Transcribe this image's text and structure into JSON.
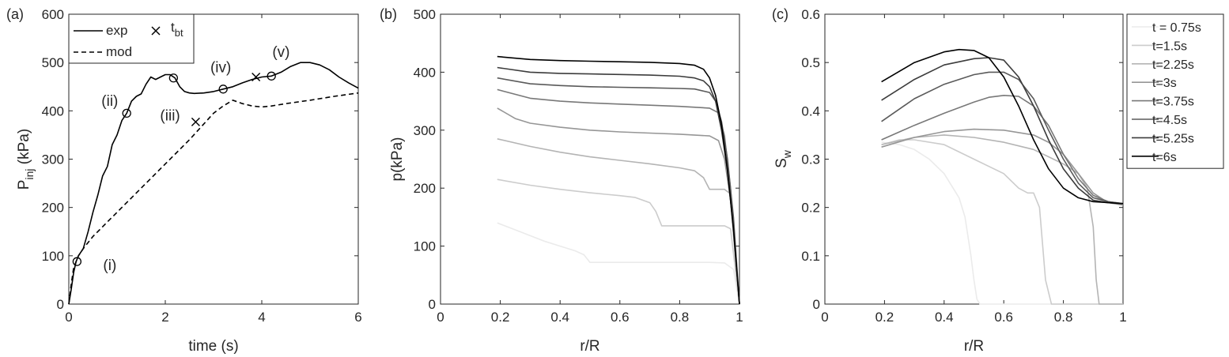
{
  "chart_data": [
    {
      "panel_label": "(a)",
      "type": "line",
      "xlabel": "time (s)",
      "ylabel_main": "P",
      "ylabel_sub": "inj",
      "ylabel_rest": "(kPa)",
      "xlim": [
        0,
        6
      ],
      "ylim": [
        0,
        600
      ],
      "xticks": [
        0,
        2,
        4,
        6
      ],
      "yticks": [
        0,
        100,
        200,
        300,
        400,
        500,
        600
      ],
      "grid": false,
      "legend_placement": "top-left",
      "legend": {
        "exp": "exp",
        "mod": "mod",
        "tbt_main": "t",
        "tbt_sub": "bt"
      },
      "series": [
        {
          "name": "exp",
          "style": "solid",
          "x": [
            0,
            0.05,
            0.1,
            0.15,
            0.2,
            0.3,
            0.4,
            0.5,
            0.6,
            0.7,
            0.8,
            0.9,
            1.0,
            1.1,
            1.2,
            1.3,
            1.4,
            1.5,
            1.6,
            1.7,
            1.8,
            1.9,
            2.0,
            2.1,
            2.2,
            2.3,
            2.4,
            2.5,
            2.6,
            2.8,
            3.0,
            3.2,
            3.4,
            3.6,
            3.8,
            4.0,
            4.2,
            4.4,
            4.6,
            4.8,
            5.0,
            5.2,
            5.4,
            5.6,
            5.8,
            6.0
          ],
          "y": [
            0,
            30,
            65,
            88,
            100,
            115,
            150,
            190,
            225,
            265,
            285,
            330,
            350,
            380,
            395,
            420,
            430,
            435,
            455,
            470,
            465,
            470,
            475,
            475,
            468,
            450,
            440,
            437,
            436,
            437,
            440,
            445,
            450,
            458,
            465,
            470,
            472,
            480,
            492,
            500,
            500,
            495,
            485,
            470,
            458,
            447
          ]
        },
        {
          "name": "mod",
          "style": "dashed",
          "x": [
            0,
            0.05,
            0.1,
            0.2,
            0.3,
            0.5,
            0.8,
            1.0,
            1.5,
            2.0,
            2.5,
            3.0,
            3.2,
            3.4,
            3.6,
            3.8,
            4.0,
            4.2,
            4.5,
            5.0,
            5.5,
            6.0
          ],
          "y": [
            0,
            40,
            75,
            100,
            115,
            140,
            170,
            190,
            240,
            290,
            340,
            395,
            410,
            422,
            415,
            410,
            408,
            410,
            415,
            422,
            430,
            437
          ]
        }
      ],
      "circle_markers": [
        {
          "x": 0.17,
          "y": 88
        },
        {
          "x": 1.2,
          "y": 395
        },
        {
          "x": 2.17,
          "y": 468
        },
        {
          "x": 3.2,
          "y": 445
        },
        {
          "x": 4.2,
          "y": 472
        }
      ],
      "tbt_markers": [
        {
          "x": 2.63,
          "y": 377
        },
        {
          "x": 3.88,
          "y": 470
        }
      ],
      "annotations": [
        {
          "text": "(i)",
          "x": 0.85,
          "y": 70
        },
        {
          "text": "(ii)",
          "x": 0.85,
          "y": 410
        },
        {
          "text": "(iii)",
          "x": 2.1,
          "y": 380
        },
        {
          "text": "(iv)",
          "x": 3.15,
          "y": 480
        },
        {
          "text": "(v)",
          "x": 4.4,
          "y": 512
        }
      ]
    },
    {
      "panel_label": "(b)",
      "type": "line",
      "xlabel": "r/R",
      "ylabel": "p(kPa)",
      "xlim": [
        0,
        1
      ],
      "ylim": [
        0,
        500
      ],
      "xticks": [
        0,
        0.2,
        0.4,
        0.6,
        0.8,
        1
      ],
      "yticks": [
        0,
        100,
        200,
        300,
        400,
        500
      ],
      "grid": false,
      "series": [
        {
          "name": "t = 0.75s",
          "color": "#ebebeb",
          "x": [
            0.19,
            0.25,
            0.3,
            0.35,
            0.4,
            0.45,
            0.48,
            0.5,
            0.6,
            0.7,
            0.8,
            0.9,
            0.95,
            0.98,
            1.0
          ],
          "y": [
            140,
            128,
            118,
            108,
            100,
            92,
            85,
            72,
            72,
            72,
            72,
            72,
            71,
            60,
            0
          ]
        },
        {
          "name": "t=1.5s",
          "color": "#cccccc",
          "x": [
            0.19,
            0.3,
            0.4,
            0.5,
            0.6,
            0.65,
            0.7,
            0.72,
            0.74,
            0.8,
            0.9,
            0.95,
            0.97,
            1.0
          ],
          "y": [
            215,
            205,
            198,
            192,
            187,
            184,
            175,
            160,
            135,
            135,
            135,
            135,
            130,
            0
          ]
        },
        {
          "name": "t=2.25s",
          "color": "#b4b4b4",
          "x": [
            0.19,
            0.3,
            0.4,
            0.5,
            0.6,
            0.7,
            0.8,
            0.85,
            0.88,
            0.9,
            0.95,
            0.97,
            1.0
          ],
          "y": [
            285,
            272,
            262,
            254,
            248,
            242,
            235,
            230,
            218,
            198,
            198,
            190,
            0
          ]
        },
        {
          "name": "t=3s",
          "color": "#969696",
          "x": [
            0.19,
            0.25,
            0.3,
            0.4,
            0.5,
            0.6,
            0.7,
            0.8,
            0.9,
            0.93,
            0.95,
            0.97,
            1.0
          ],
          "y": [
            338,
            320,
            312,
            305,
            300,
            297,
            295,
            293,
            290,
            282,
            250,
            180,
            0
          ]
        },
        {
          "name": "t=3.75s",
          "color": "#787878",
          "x": [
            0.19,
            0.3,
            0.4,
            0.5,
            0.6,
            0.7,
            0.8,
            0.9,
            0.93,
            0.95,
            0.97,
            1.0
          ],
          "y": [
            370,
            355,
            350,
            347,
            345,
            343,
            341,
            338,
            330,
            290,
            200,
            0
          ]
        },
        {
          "name": "t=4.5s",
          "color": "#5a5a5a",
          "x": [
            0.19,
            0.3,
            0.4,
            0.5,
            0.6,
            0.7,
            0.8,
            0.85,
            0.9,
            0.92,
            0.94,
            0.96,
            0.98,
            1.0
          ],
          "y": [
            390,
            380,
            377,
            375,
            374,
            373,
            372,
            371,
            365,
            350,
            315,
            250,
            150,
            0
          ]
        },
        {
          "name": "t=5.25s",
          "color": "#3c3c3c",
          "x": [
            0.19,
            0.3,
            0.4,
            0.5,
            0.6,
            0.7,
            0.8,
            0.85,
            0.88,
            0.9,
            0.92,
            0.94,
            0.96,
            0.98,
            1.0
          ],
          "y": [
            408,
            400,
            398,
            397,
            396,
            395,
            393,
            390,
            385,
            375,
            350,
            300,
            230,
            130,
            0
          ]
        },
        {
          "name": "t=6s",
          "color": "#000000",
          "x": [
            0.19,
            0.3,
            0.4,
            0.5,
            0.6,
            0.7,
            0.8,
            0.85,
            0.88,
            0.9,
            0.92,
            0.94,
            0.96,
            0.98,
            1.0
          ],
          "y": [
            427,
            422,
            420,
            419,
            418,
            417,
            415,
            412,
            405,
            390,
            360,
            310,
            230,
            130,
            0
          ]
        }
      ]
    },
    {
      "panel_label": "(c)",
      "type": "line",
      "xlabel": "r/R",
      "ylabel_main": "S",
      "ylabel_sub": "w",
      "xlim": [
        0,
        1
      ],
      "ylim": [
        0,
        0.6
      ],
      "xticks": [
        0,
        0.2,
        0.4,
        0.6,
        0.8,
        1
      ],
      "yticks": [
        0,
        0.1,
        0.2,
        0.3,
        0.4,
        0.5,
        0.6
      ],
      "grid": false,
      "legend_placement": "top-right",
      "series": [
        {
          "name": "t = 0.75s",
          "color": "#ebebeb",
          "x": [
            0.19,
            0.25,
            0.3,
            0.35,
            0.4,
            0.45,
            0.47,
            0.49,
            0.5,
            0.51,
            0.52,
            0.6,
            0.8,
            1.0
          ],
          "y": [
            0.335,
            0.33,
            0.32,
            0.3,
            0.27,
            0.22,
            0.18,
            0.1,
            0.05,
            0.01,
            0,
            0,
            0,
            0
          ]
        },
        {
          "name": "t=1.5s",
          "color": "#cccccc",
          "x": [
            0.19,
            0.25,
            0.3,
            0.4,
            0.5,
            0.6,
            0.65,
            0.68,
            0.7,
            0.72,
            0.74,
            0.76,
            0.8,
            1.0
          ],
          "y": [
            0.33,
            0.34,
            0.34,
            0.33,
            0.3,
            0.27,
            0.24,
            0.23,
            0.23,
            0.2,
            0.05,
            0,
            0,
            0
          ]
        },
        {
          "name": "t=2.25s",
          "color": "#b4b4b4",
          "x": [
            0.19,
            0.3,
            0.4,
            0.5,
            0.6,
            0.7,
            0.8,
            0.85,
            0.88,
            0.9,
            0.91,
            0.92,
            0.95,
            1.0
          ],
          "y": [
            0.33,
            0.345,
            0.35,
            0.345,
            0.335,
            0.32,
            0.29,
            0.27,
            0.24,
            0.16,
            0.05,
            0,
            0,
            0
          ]
        },
        {
          "name": "t=3s",
          "color": "#969696",
          "x": [
            0.19,
            0.3,
            0.4,
            0.5,
            0.6,
            0.7,
            0.75,
            0.8,
            0.85,
            0.9,
            0.95,
            1.0
          ],
          "y": [
            0.325,
            0.345,
            0.357,
            0.362,
            0.36,
            0.35,
            0.335,
            0.31,
            0.27,
            0.23,
            0.21,
            0.205
          ]
        },
        {
          "name": "t=3.75s",
          "color": "#787878",
          "x": [
            0.19,
            0.3,
            0.4,
            0.5,
            0.55,
            0.6,
            0.65,
            0.7,
            0.75,
            0.8,
            0.85,
            0.9,
            0.95,
            1.0
          ],
          "y": [
            0.34,
            0.37,
            0.395,
            0.418,
            0.428,
            0.432,
            0.43,
            0.41,
            0.37,
            0.31,
            0.26,
            0.225,
            0.212,
            0.208
          ]
        },
        {
          "name": "t=4.5s",
          "color": "#5a5a5a",
          "x": [
            0.19,
            0.3,
            0.4,
            0.5,
            0.55,
            0.6,
            0.65,
            0.7,
            0.75,
            0.8,
            0.85,
            0.9,
            0.95,
            1.0
          ],
          "y": [
            0.378,
            0.425,
            0.455,
            0.475,
            0.48,
            0.48,
            0.465,
            0.425,
            0.36,
            0.3,
            0.25,
            0.22,
            0.212,
            0.208
          ]
        },
        {
          "name": "t=5.25s",
          "color": "#3c3c3c",
          "x": [
            0.19,
            0.3,
            0.4,
            0.5,
            0.55,
            0.6,
            0.65,
            0.7,
            0.75,
            0.8,
            0.85,
            0.9,
            0.95,
            1.0
          ],
          "y": [
            0.422,
            0.465,
            0.495,
            0.508,
            0.51,
            0.505,
            0.47,
            0.41,
            0.34,
            0.28,
            0.24,
            0.215,
            0.21,
            0.208
          ]
        },
        {
          "name": "t=6s",
          "color": "#000000",
          "x": [
            0.19,
            0.3,
            0.4,
            0.45,
            0.5,
            0.55,
            0.6,
            0.65,
            0.7,
            0.75,
            0.8,
            0.85,
            0.9,
            0.95,
            1.0
          ],
          "y": [
            0.46,
            0.5,
            0.522,
            0.527,
            0.525,
            0.51,
            0.47,
            0.41,
            0.34,
            0.28,
            0.24,
            0.22,
            0.212,
            0.21,
            0.208
          ]
        }
      ]
    }
  ]
}
